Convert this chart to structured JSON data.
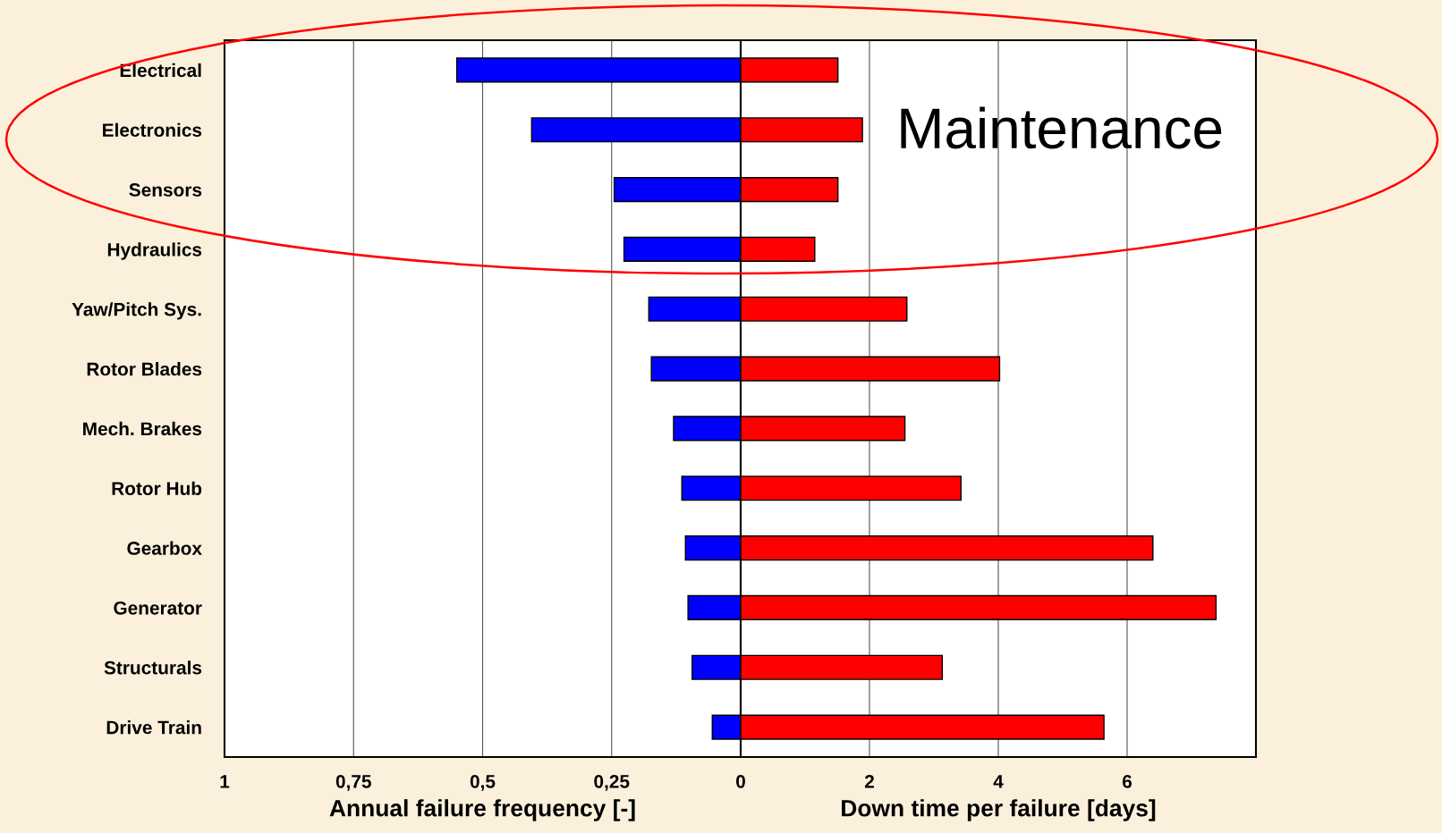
{
  "chart_data": [
    {
      "type": "bar",
      "orientation": "horizontal",
      "xlabel": "Annual failure frequency [-]",
      "categories": [
        "Electrical",
        "Electronics",
        "Sensors",
        "Hydraulics",
        "Yaw/Pitch Sys.",
        "Rotor Blades",
        "Mech. Brakes",
        "Rotor Hub",
        "Gearbox",
        "Generator",
        "Structurals",
        "Drive Train"
      ],
      "series": [
        {
          "color": "#0000ff",
          "values": [
            0.55,
            0.405,
            0.245,
            0.226,
            0.178,
            0.173,
            0.13,
            0.114,
            0.107,
            0.102,
            0.094,
            0.055
          ]
        }
      ],
      "xlim": [
        1,
        0
      ],
      "xticks": [
        {
          "value": 1,
          "label": "1"
        },
        {
          "value": 0.75,
          "label": "0,75"
        },
        {
          "value": 0.5,
          "label": "0,5"
        },
        {
          "value": 0.25,
          "label": "0,25"
        },
        {
          "value": 0,
          "label": "0"
        }
      ],
      "grid": "x"
    },
    {
      "type": "bar",
      "orientation": "horizontal",
      "xlabel": "Down time per failure [days]",
      "categories": [
        null,
        null,
        null,
        null,
        null,
        null,
        null,
        null,
        null,
        null,
        null,
        null
      ],
      "series": [
        {
          "color": "#ff0000",
          "values": [
            1.51,
            1.89,
            1.51,
            1.15,
            2.58,
            4.02,
            2.55,
            3.42,
            6.4,
            7.38,
            3.13,
            5.64
          ]
        }
      ],
      "xlim": [
        0,
        8
      ],
      "xticks": [
        {
          "value": 0,
          "label": null
        },
        2,
        4,
        6,
        {
          "value": 8,
          "label": null
        }
      ],
      "grid": "x",
      "tick_labels": "x",
      "annotations": [
        "Maintenance"
      ]
    }
  ]
}
